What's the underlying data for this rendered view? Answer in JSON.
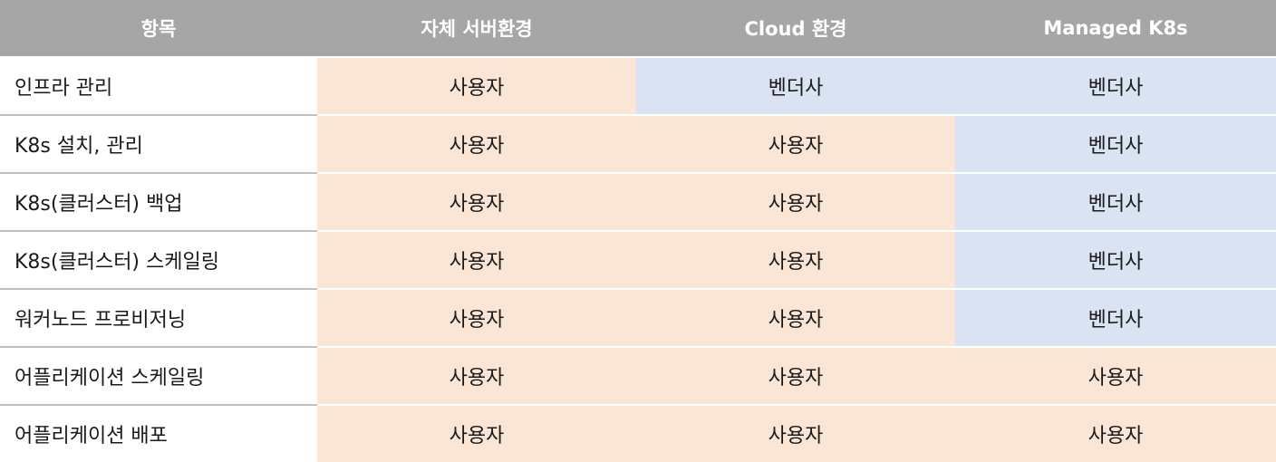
{
  "header": {
    "item": "항목",
    "on_premise": "자체 서버환경",
    "cloud": "Cloud 환경",
    "managed": "Managed K8s"
  },
  "colors": {
    "header_bg": "#a6a6a6",
    "user_bg": "#fbe5d6",
    "vendor_bg": "#dae3f3"
  },
  "rows": [
    {
      "item": "인프라 관리",
      "on_premise": "사용자",
      "cloud": "벤더사",
      "managed": "벤더사"
    },
    {
      "item": "K8s 설치,  관리",
      "on_premise": "사용자",
      "cloud": "사용자",
      "managed": "벤더사"
    },
    {
      "item": "K8s(클러스터) 백업",
      "on_premise": "사용자",
      "cloud": "사용자",
      "managed": "벤더사"
    },
    {
      "item": "K8s(클러스터) 스케일링",
      "on_premise": "사용자",
      "cloud": "사용자",
      "managed": "벤더사"
    },
    {
      "item": "워커노드 프로비저닝",
      "on_premise": "사용자",
      "cloud": "사용자",
      "managed": "벤더사"
    },
    {
      "item": "어플리케이션 스케일링",
      "on_premise": "사용자",
      "cloud": "사용자",
      "managed": "사용자"
    },
    {
      "item": "어플리케이션 배포",
      "on_premise": "사용자",
      "cloud": "사용자",
      "managed": "사용자"
    }
  ]
}
